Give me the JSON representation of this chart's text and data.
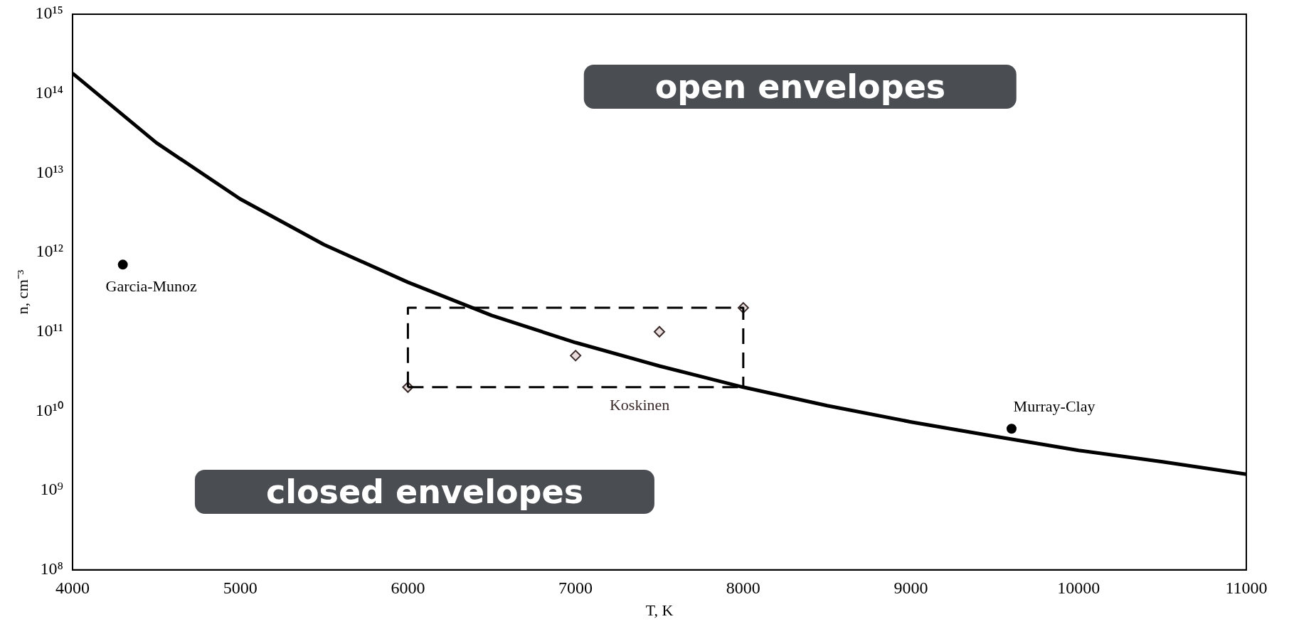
{
  "chart_data": {
    "type": "line",
    "xlabel": "T, K",
    "ylabel": "n, cm⁻³",
    "log": "y",
    "grid": false,
    "legend": false,
    "xlim": [
      4000,
      11000
    ],
    "xticks": [
      4000,
      5000,
      6000,
      7000,
      8000,
      9000,
      10000,
      11000
    ],
    "ylim": [
      100000000.0,
      1000000000000000.0
    ],
    "yticks": [
      {
        "value": 100000000.0,
        "label": "10⁸"
      },
      {
        "value": 1000000000.0,
        "label": "10⁹"
      },
      {
        "value": 10000000000.0,
        "label": "10¹⁰"
      },
      {
        "value": 100000000000.0,
        "label": "10¹¹"
      },
      {
        "value": 1000000000000.0,
        "label": "10¹²"
      },
      {
        "value": 10000000000000.0,
        "label": "10¹³"
      },
      {
        "value": 100000000000000.0,
        "label": "10¹⁴"
      },
      {
        "value": 1000000000000000.0,
        "label": "10¹⁵"
      }
    ],
    "series": [
      {
        "color": "#000000",
        "marker": "none",
        "line_style": "solid",
        "x": [
          4000,
          4500,
          5000,
          5500,
          6000,
          6500,
          7000,
          7500,
          8000,
          8500,
          9000,
          9500,
          10000,
          10500,
          11000
        ],
        "values": [
          180000000000000.0,
          24000000000000.0,
          4700000000000.0,
          1250000000000.0,
          420000000000.0,
          160000000000.0,
          73000000000.0,
          37000000000.0,
          20000000000.0,
          11700000000.0,
          7300000000.0,
          4800000000.0,
          3200000000.0,
          2300000000.0,
          1600000000.0
        ]
      },
      {
        "type": "line",
        "color": "#000000",
        "marker": "none",
        "line_style": "dashed",
        "x": [
          6000,
          6000,
          8000,
          8000
        ],
        "values": [
          20000000000.0,
          200000000000.0,
          200000000000.0,
          20000000000.0
        ]
      },
      {
        "type": "line",
        "color": "#000000",
        "marker": "none",
        "line_style": "dashed",
        "x": [
          6000,
          8000
        ],
        "values": [
          20000000000.0,
          20000000000.0
        ]
      },
      {
        "type": "scatter",
        "name": "Garcia-Munoz",
        "color": "#000000",
        "marker": "circle",
        "x": [
          4300
        ],
        "values": [
          700000000000.0
        ]
      },
      {
        "type": "scatter",
        "name": "Koskinen",
        "color": "#3a2a2a",
        "marker": "diamond",
        "x": [
          6000,
          7000,
          7500,
          8000
        ],
        "values": [
          20000000000.0,
          50000000000.0,
          100000000000.0,
          200000000000.0
        ]
      },
      {
        "type": "scatter",
        "name": "Murray-Clay",
        "color": "#000000",
        "marker": "circle",
        "x": [
          9600
        ],
        "values": [
          6000000000.0
        ]
      }
    ],
    "annotations": [
      "open envelopes",
      "closed envelopes"
    ]
  }
}
